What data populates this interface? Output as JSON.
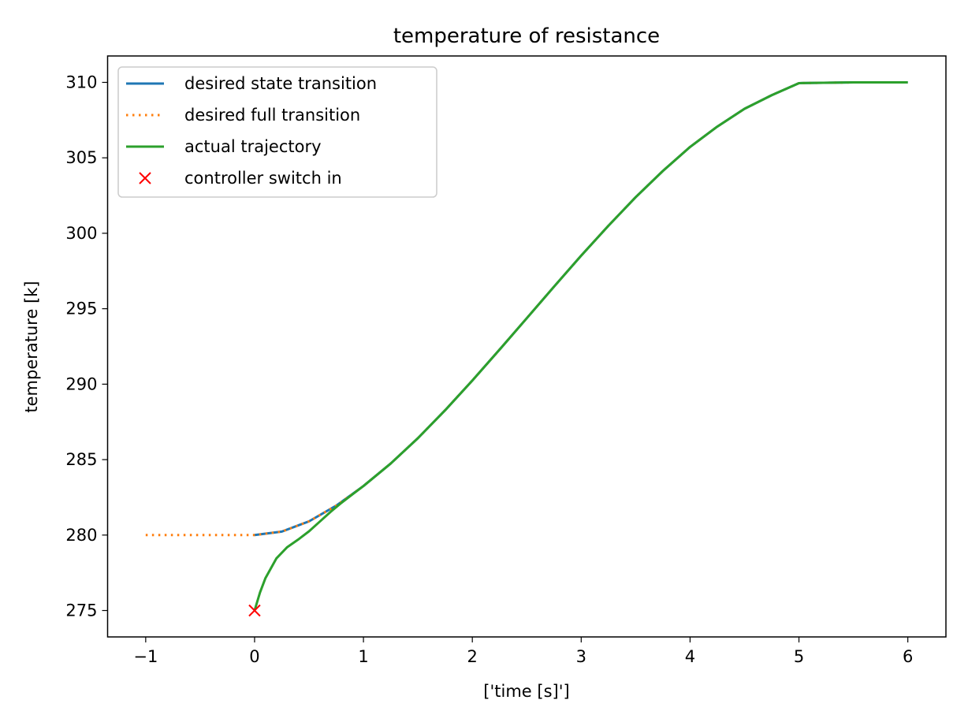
{
  "chart_data": {
    "type": "line",
    "title": "temperature of resistance",
    "xlabel": "['time [s]']",
    "ylabel": "temperature [k]",
    "xlim": [
      -1.35,
      6.35
    ],
    "ylim": [
      273.25,
      311.75
    ],
    "xticks": [
      -1,
      0,
      1,
      2,
      3,
      4,
      5,
      6
    ],
    "xtick_labels": [
      "−1",
      "0",
      "1",
      "2",
      "3",
      "4",
      "5",
      "6"
    ],
    "yticks": [
      275,
      280,
      285,
      290,
      295,
      300,
      305,
      310
    ],
    "ytick_labels": [
      "275",
      "280",
      "285",
      "290",
      "295",
      "300",
      "305",
      "310"
    ],
    "grid": false,
    "legend_position": "upper-left",
    "series": [
      {
        "name": "desired state transition",
        "style": "solid",
        "color": "#1f77b4",
        "x": [
          0,
          0.25,
          0.5,
          0.75,
          1.0,
          1.25,
          1.5,
          1.75,
          2.0,
          2.25,
          2.5,
          2.75,
          3.0,
          3.25,
          3.5,
          3.75,
          4.0,
          4.25,
          4.5,
          4.75,
          5.0,
          5.5,
          6.0
        ],
        "y": [
          280.0,
          280.23,
          280.91,
          281.95,
          283.25,
          284.74,
          286.42,
          288.27,
          290.24,
          292.29,
          294.37,
          296.46,
          298.52,
          300.5,
          302.39,
          304.13,
          305.72,
          307.07,
          308.25,
          309.15,
          309.95,
          310.0,
          310.0
        ]
      },
      {
        "name": "desired full transition",
        "style": "dotted",
        "color": "#ff7f0e",
        "x": [
          -1,
          -0.5,
          0,
          0.25,
          0.5,
          0.75,
          1.0,
          1.25,
          1.5,
          1.75,
          2.0,
          2.25,
          2.5,
          2.75,
          3.0,
          3.25,
          3.5,
          3.75,
          4.0,
          4.25,
          4.5,
          4.75,
          5.0,
          5.5,
          6.0
        ],
        "y": [
          280.0,
          280.0,
          280.0,
          280.23,
          280.91,
          281.95,
          283.25,
          284.74,
          286.42,
          288.27,
          290.24,
          292.29,
          294.37,
          296.46,
          298.52,
          300.5,
          302.39,
          304.13,
          305.72,
          307.07,
          308.25,
          309.15,
          309.95,
          310.0,
          310.0
        ]
      },
      {
        "name": "actual trajectory",
        "style": "solid",
        "color": "#2ca02c",
        "x": [
          0,
          0.05,
          0.1,
          0.2,
          0.3,
          0.4,
          0.5,
          0.6,
          0.7,
          0.8,
          0.9,
          1.0,
          1.25,
          1.5,
          1.75,
          2.0,
          2.25,
          2.5,
          2.75,
          3.0,
          3.25,
          3.5,
          3.75,
          4.0,
          4.25,
          4.5,
          4.75,
          5.0,
          5.5,
          6.0
        ],
        "y": [
          275.0,
          276.2,
          277.15,
          278.45,
          279.2,
          279.7,
          280.25,
          280.9,
          281.55,
          282.15,
          282.7,
          283.25,
          284.74,
          286.42,
          288.27,
          290.24,
          292.29,
          294.37,
          296.46,
          298.52,
          300.5,
          302.39,
          304.13,
          305.72,
          307.07,
          308.25,
          309.15,
          309.95,
          310.0,
          310.0
        ]
      },
      {
        "name": "controller switch in",
        "style": "marker-x",
        "color": "#ff0000",
        "x": [
          0
        ],
        "y": [
          275.0
        ]
      }
    ]
  }
}
